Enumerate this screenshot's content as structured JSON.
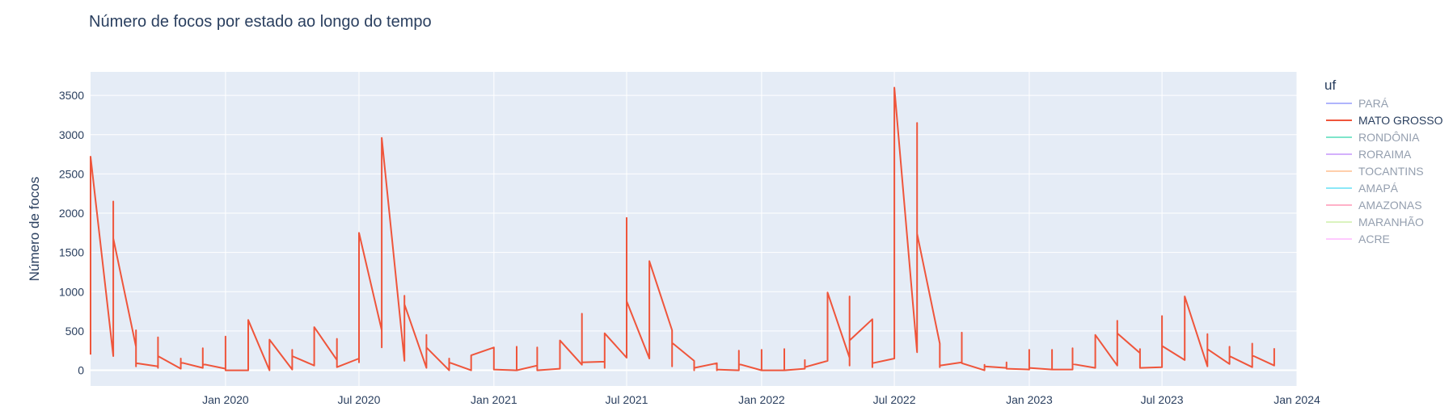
{
  "chart_data": {
    "type": "line",
    "title": "Número de focos por estado ao longo do tempo",
    "xlabel": "",
    "ylabel": "Número de focos",
    "yticks": [
      0,
      500,
      1000,
      1500,
      2000,
      2500,
      3000,
      3500
    ],
    "ylim": [
      -200,
      3800
    ],
    "xticks": [
      {
        "label": "Jan 2020",
        "date": "2020-01-01"
      },
      {
        "label": "Jul 2020",
        "date": "2020-07-01"
      },
      {
        "label": "Jan 2021",
        "date": "2021-01-01"
      },
      {
        "label": "Jul 2021",
        "date": "2021-07-01"
      },
      {
        "label": "Jan 2022",
        "date": "2022-01-01"
      },
      {
        "label": "Jul 2022",
        "date": "2022-07-01"
      },
      {
        "label": "Jan 2023",
        "date": "2023-01-01"
      },
      {
        "label": "Jul 2023",
        "date": "2023-07-01"
      },
      {
        "label": "Jan 2024",
        "date": "2024-01-01"
      }
    ],
    "xlim": [
      "2019-07-01",
      "2024-01-01"
    ],
    "grid": true,
    "legend": {
      "title": "uf",
      "placement": "right",
      "entries": [
        {
          "name": "PARÁ",
          "color": "#636efa",
          "visible": false
        },
        {
          "name": "MATO GROSSO",
          "color": "#EF553B",
          "visible": true
        },
        {
          "name": "RONDÔNIA",
          "color": "#00cc96",
          "visible": false
        },
        {
          "name": "RORAIMA",
          "color": "#ab63fa",
          "visible": false
        },
        {
          "name": "TOCANTINS",
          "color": "#FFA15A",
          "visible": false
        },
        {
          "name": "AMAPÁ",
          "color": "#19d3f3",
          "visible": false
        },
        {
          "name": "AMAZONAS",
          "color": "#FF6692",
          "visible": false
        },
        {
          "name": "MARANHÃO",
          "color": "#B6E880",
          "visible": false
        },
        {
          "name": "ACRE",
          "color": "#FF97FF",
          "visible": false
        }
      ]
    },
    "series": [
      {
        "name": "MATO GROSSO",
        "color": "#EF553B",
        "points": [
          [
            "2019-07-01",
            200
          ],
          [
            "2019-07-01",
            2720
          ],
          [
            "2019-08-01",
            180
          ],
          [
            "2019-08-01",
            2150
          ],
          [
            "2019-08-01",
            1680
          ],
          [
            "2019-09-01",
            300
          ],
          [
            "2019-09-01",
            510
          ],
          [
            "2019-09-01",
            50
          ],
          [
            "2019-09-01",
            90
          ],
          [
            "2019-10-01",
            50
          ],
          [
            "2019-10-01",
            420
          ],
          [
            "2019-10-01",
            30
          ],
          [
            "2019-10-01",
            180
          ],
          [
            "2019-11-01",
            20
          ],
          [
            "2019-11-01",
            150
          ],
          [
            "2019-11-01",
            100
          ],
          [
            "2019-12-01",
            30
          ],
          [
            "2019-12-01",
            280
          ],
          [
            "2019-12-01",
            80
          ],
          [
            "2020-01-01",
            20
          ],
          [
            "2020-01-01",
            430
          ],
          [
            "2020-01-01",
            0
          ],
          [
            "2020-02-01",
            0
          ],
          [
            "2020-02-01",
            640
          ],
          [
            "2020-03-01",
            0
          ],
          [
            "2020-03-01",
            390
          ],
          [
            "2020-04-01",
            10
          ],
          [
            "2020-04-01",
            260
          ],
          [
            "2020-04-01",
            180
          ],
          [
            "2020-05-01",
            60
          ],
          [
            "2020-05-01",
            550
          ],
          [
            "2020-06-01",
            130
          ],
          [
            "2020-06-01",
            400
          ],
          [
            "2020-06-01",
            40
          ],
          [
            "2020-07-01",
            150
          ],
          [
            "2020-07-01",
            100
          ],
          [
            "2020-07-01",
            1750
          ],
          [
            "2020-08-01",
            510
          ],
          [
            "2020-08-01",
            290
          ],
          [
            "2020-08-01",
            2960
          ],
          [
            "2020-09-01",
            120
          ],
          [
            "2020-09-01",
            950
          ],
          [
            "2020-09-01",
            840
          ],
          [
            "2020-10-01",
            30
          ],
          [
            "2020-10-01",
            450
          ],
          [
            "2020-10-01",
            290
          ],
          [
            "2020-11-01",
            0
          ],
          [
            "2020-11-01",
            150
          ],
          [
            "2020-11-01",
            100
          ],
          [
            "2020-12-01",
            0
          ],
          [
            "2020-12-01",
            190
          ],
          [
            "2021-01-01",
            290
          ],
          [
            "2021-01-01",
            10
          ],
          [
            "2021-02-01",
            0
          ],
          [
            "2021-02-01",
            300
          ],
          [
            "2021-02-01",
            0
          ],
          [
            "2021-03-01",
            60
          ],
          [
            "2021-03-01",
            290
          ],
          [
            "2021-03-01",
            0
          ],
          [
            "2021-04-01",
            20
          ],
          [
            "2021-04-01",
            380
          ],
          [
            "2021-05-01",
            70
          ],
          [
            "2021-05-01",
            720
          ],
          [
            "2021-05-01",
            100
          ],
          [
            "2021-06-01",
            110
          ],
          [
            "2021-06-01",
            30
          ],
          [
            "2021-06-01",
            470
          ],
          [
            "2021-07-01",
            160
          ],
          [
            "2021-07-01",
            1940
          ],
          [
            "2021-07-01",
            880
          ],
          [
            "2021-08-01",
            150
          ],
          [
            "2021-08-01",
            1390
          ],
          [
            "2021-09-01",
            510
          ],
          [
            "2021-09-01",
            50
          ],
          [
            "2021-09-01",
            350
          ],
          [
            "2021-10-01",
            120
          ],
          [
            "2021-10-01",
            0
          ],
          [
            "2021-10-01",
            30
          ],
          [
            "2021-11-01",
            90
          ],
          [
            "2021-11-01",
            0
          ],
          [
            "2021-11-01",
            10
          ],
          [
            "2021-12-01",
            0
          ],
          [
            "2021-12-01",
            250
          ],
          [
            "2021-12-01",
            80
          ],
          [
            "2022-01-01",
            0
          ],
          [
            "2022-01-01",
            260
          ],
          [
            "2022-01-01",
            0
          ],
          [
            "2022-02-01",
            0
          ],
          [
            "2022-02-01",
            270
          ],
          [
            "2022-02-01",
            0
          ],
          [
            "2022-03-01",
            20
          ],
          [
            "2022-03-01",
            130
          ],
          [
            "2022-03-01",
            40
          ],
          [
            "2022-04-01",
            120
          ],
          [
            "2022-04-01",
            990
          ],
          [
            "2022-05-01",
            160
          ],
          [
            "2022-05-01",
            60
          ],
          [
            "2022-05-01",
            940
          ],
          [
            "2022-05-01",
            380
          ],
          [
            "2022-06-01",
            650
          ],
          [
            "2022-06-01",
            40
          ],
          [
            "2022-06-01",
            90
          ],
          [
            "2022-07-01",
            150
          ],
          [
            "2022-07-01",
            3600
          ],
          [
            "2022-08-01",
            230
          ],
          [
            "2022-08-01",
            3150
          ],
          [
            "2022-08-01",
            1740
          ],
          [
            "2022-09-01",
            340
          ],
          [
            "2022-09-01",
            40
          ],
          [
            "2022-09-01",
            60
          ],
          [
            "2022-10-01",
            100
          ],
          [
            "2022-10-01",
            480
          ],
          [
            "2022-10-01",
            90
          ],
          [
            "2022-11-01",
            0
          ],
          [
            "2022-11-01",
            70
          ],
          [
            "2022-11-01",
            50
          ],
          [
            "2022-12-01",
            30
          ],
          [
            "2022-12-01",
            100
          ],
          [
            "2022-12-01",
            20
          ],
          [
            "2023-01-01",
            10
          ],
          [
            "2023-01-01",
            260
          ],
          [
            "2023-01-01",
            30
          ],
          [
            "2023-02-01",
            10
          ],
          [
            "2023-02-01",
            260
          ],
          [
            "2023-02-01",
            10
          ],
          [
            "2023-03-01",
            10
          ],
          [
            "2023-03-01",
            280
          ],
          [
            "2023-03-01",
            80
          ],
          [
            "2023-04-01",
            30
          ],
          [
            "2023-04-01",
            450
          ],
          [
            "2023-05-01",
            60
          ],
          [
            "2023-05-01",
            630
          ],
          [
            "2023-05-01",
            470
          ],
          [
            "2023-06-01",
            220
          ],
          [
            "2023-06-01",
            270
          ],
          [
            "2023-06-01",
            30
          ],
          [
            "2023-07-01",
            40
          ],
          [
            "2023-07-01",
            690
          ],
          [
            "2023-07-01",
            310
          ],
          [
            "2023-08-01",
            130
          ],
          [
            "2023-08-01",
            940
          ],
          [
            "2023-09-01",
            50
          ],
          [
            "2023-09-01",
            460
          ],
          [
            "2023-09-01",
            270
          ],
          [
            "2023-10-01",
            80
          ],
          [
            "2023-10-01",
            300
          ],
          [
            "2023-10-01",
            180
          ],
          [
            "2023-11-01",
            40
          ],
          [
            "2023-11-01",
            340
          ],
          [
            "2023-11-01",
            190
          ],
          [
            "2023-12-01",
            60
          ],
          [
            "2023-12-01",
            280
          ]
        ]
      }
    ]
  }
}
